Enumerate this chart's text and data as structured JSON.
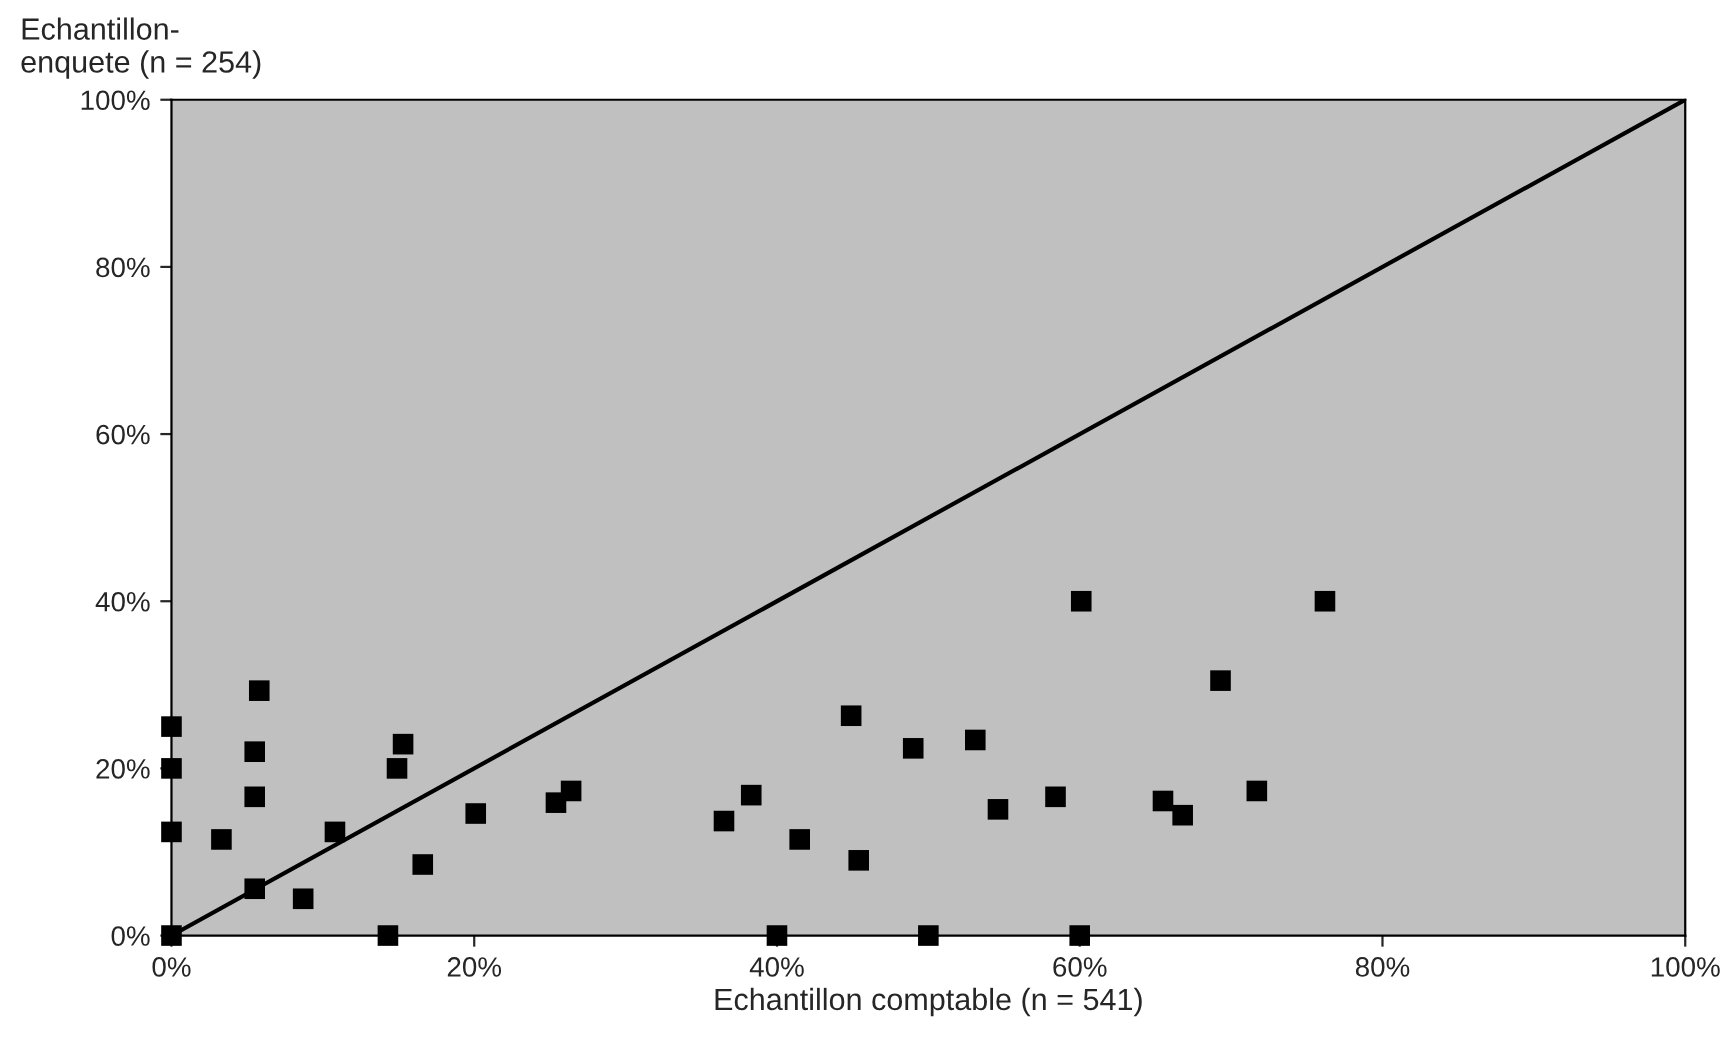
{
  "chart_data": {
    "type": "scatter",
    "xlabel": "Echantillon comptable (n = 541)",
    "ylabel": "Echantillon-\nenquete (n = 254)",
    "xlim": [
      0,
      100
    ],
    "ylim": [
      0,
      100
    ],
    "xticks": [
      {
        "value": 0,
        "label": "0%"
      },
      {
        "value": 20,
        "label": "20%"
      },
      {
        "value": 40,
        "label": "40%"
      },
      {
        "value": 60,
        "label": "60%"
      },
      {
        "value": 80,
        "label": "80%"
      },
      {
        "value": 100,
        "label": "100%"
      }
    ],
    "yticks": [
      {
        "value": 0,
        "label": "0%"
      },
      {
        "value": 20,
        "label": "20%"
      },
      {
        "value": 40,
        "label": "40%"
      },
      {
        "value": 60,
        "label": "60%"
      },
      {
        "value": 80,
        "label": "80%"
      },
      {
        "value": 100,
        "label": "100%"
      }
    ],
    "grid": false,
    "legend": false,
    "series": [
      {
        "color": "#000000",
        "marker": "square",
        "x": [
          0,
          0,
          0,
          0,
          5.8,
          5.5,
          5.5,
          5.5,
          3.3,
          8.7,
          10.8,
          14.3,
          15.3,
          14.9,
          16.6,
          20.1,
          25.4,
          26.4,
          36.5,
          38.3,
          40,
          41.5,
          44.9,
          45.4,
          49,
          50,
          53.1,
          54.6,
          58.4,
          60.1,
          60,
          65.5,
          66.8,
          69.3,
          71.7,
          76.2
        ],
        "values": [
          25,
          20,
          12.4,
          0,
          29.3,
          22,
          16.6,
          5.6,
          11.5,
          4.4,
          12.4,
          0,
          22.9,
          20,
          8.5,
          14.6,
          15.9,
          17.3,
          13.7,
          16.8,
          0,
          11.5,
          26.3,
          9,
          22.4,
          0,
          23.4,
          15.1,
          16.6,
          40,
          0,
          16.1,
          14.4,
          30.5,
          17.3,
          40
        ]
      },
      {
        "type": "line",
        "color": "#000000",
        "marker": "none",
        "line_style": "solid",
        "x": [
          0,
          100
        ],
        "values": [
          0,
          100
        ]
      }
    ]
  }
}
